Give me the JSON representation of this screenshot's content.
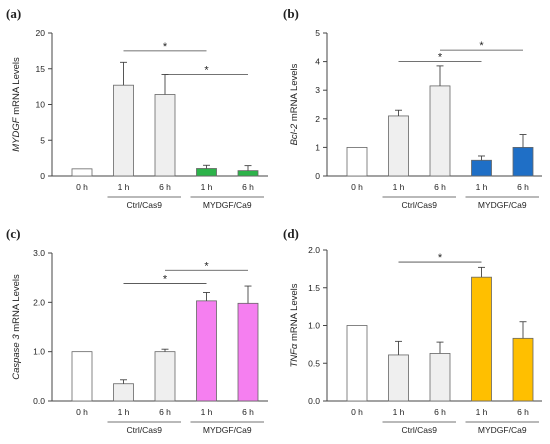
{
  "chart_data": [
    {
      "type": "bar",
      "panel": "(a)",
      "ylabel_gene": "MYDGF",
      "ylabel_rest": " mRNA Levels",
      "ylim": [
        0,
        20
      ],
      "yticks": [
        "0",
        "5",
        "10",
        "15",
        "20"
      ],
      "categories": [
        "0 h",
        "1 h",
        "6 h",
        "1 h",
        "6 h"
      ],
      "groups": [
        "Ctrl/Cas9",
        "MYDGF/Ca9"
      ],
      "values": [
        1.0,
        12.7,
        11.4,
        1.05,
        0.75
      ],
      "errors": [
        0,
        3.2,
        2.8,
        0.45,
        0.7
      ],
      "colors": [
        "#ffffff",
        "#efefef",
        "#efefef",
        "#2db34a",
        "#2db34a"
      ],
      "significance": [
        {
          "from": 1,
          "to": 3,
          "y": 17.5,
          "label": "*"
        },
        {
          "from": 2,
          "to": 4,
          "y": 14.2,
          "label": "*"
        }
      ]
    },
    {
      "type": "bar",
      "panel": "(b)",
      "ylabel_gene": "Bcl-2",
      "ylabel_rest": " mRNA Levels",
      "ylim": [
        0,
        5
      ],
      "yticks": [
        "0",
        "1",
        "2",
        "3",
        "4",
        "5"
      ],
      "categories": [
        "0 h",
        "1 h",
        "6 h",
        "1 h",
        "6 h"
      ],
      "groups": [
        "Ctrl/Cas9",
        "MYDGF/Ca9"
      ],
      "values": [
        1.0,
        2.1,
        3.15,
        0.55,
        1.0
      ],
      "errors": [
        0,
        0.2,
        0.7,
        0.15,
        0.45
      ],
      "colors": [
        "#ffffff",
        "#efefef",
        "#efefef",
        "#1f6fc6",
        "#1f6fc6"
      ],
      "significance": [
        {
          "from": 1,
          "to": 3,
          "y": 4.0,
          "label": "*"
        },
        {
          "from": 2,
          "to": 4,
          "y": 4.4,
          "label": "*"
        }
      ]
    },
    {
      "type": "bar",
      "panel": "(c)",
      "ylabel_gene": "Caspase 3",
      "ylabel_rest": " mRNA Levels",
      "ylim": [
        0,
        3
      ],
      "yticks": [
        "0.0",
        "1.0",
        "2.0",
        "3.0"
      ],
      "categories": [
        "0 h",
        "1 h",
        "6 h",
        "1 h",
        "6 h"
      ],
      "groups": [
        "Ctrl/Cas9",
        "MYDGF/Ca9"
      ],
      "values": [
        1.0,
        0.35,
        1.0,
        2.03,
        1.98
      ],
      "errors": [
        0,
        0.08,
        0.05,
        0.17,
        0.35
      ],
      "colors": [
        "#ffffff",
        "#efefef",
        "#efefef",
        "#f57ff0",
        "#f57ff0"
      ],
      "significance": [
        {
          "from": 1,
          "to": 3,
          "y": 2.38,
          "label": "*"
        },
        {
          "from": 2,
          "to": 4,
          "y": 2.65,
          "label": "*"
        }
      ]
    },
    {
      "type": "bar",
      "panel": "(d)",
      "ylabel_gene": "TNFα",
      "ylabel_rest": " mRNA Levels",
      "ylim": [
        0,
        2
      ],
      "yticks": [
        "0.0",
        "0.5",
        "1.0",
        "1.5",
        "2.0"
      ],
      "categories": [
        "0 h",
        "1 h",
        "6 h",
        "1 h",
        "6 h"
      ],
      "groups": [
        "Ctrl/Cas9",
        "MYDGF/Ca9"
      ],
      "values": [
        1.0,
        0.61,
        0.63,
        1.64,
        0.83
      ],
      "errors": [
        0,
        0.18,
        0.15,
        0.13,
        0.22
      ],
      "colors": [
        "#ffffff",
        "#efefef",
        "#efefef",
        "#ffbf00",
        "#ffbf00"
      ],
      "significance": [
        {
          "from": 1,
          "to": 3,
          "y": 1.84,
          "label": "*"
        }
      ]
    }
  ]
}
